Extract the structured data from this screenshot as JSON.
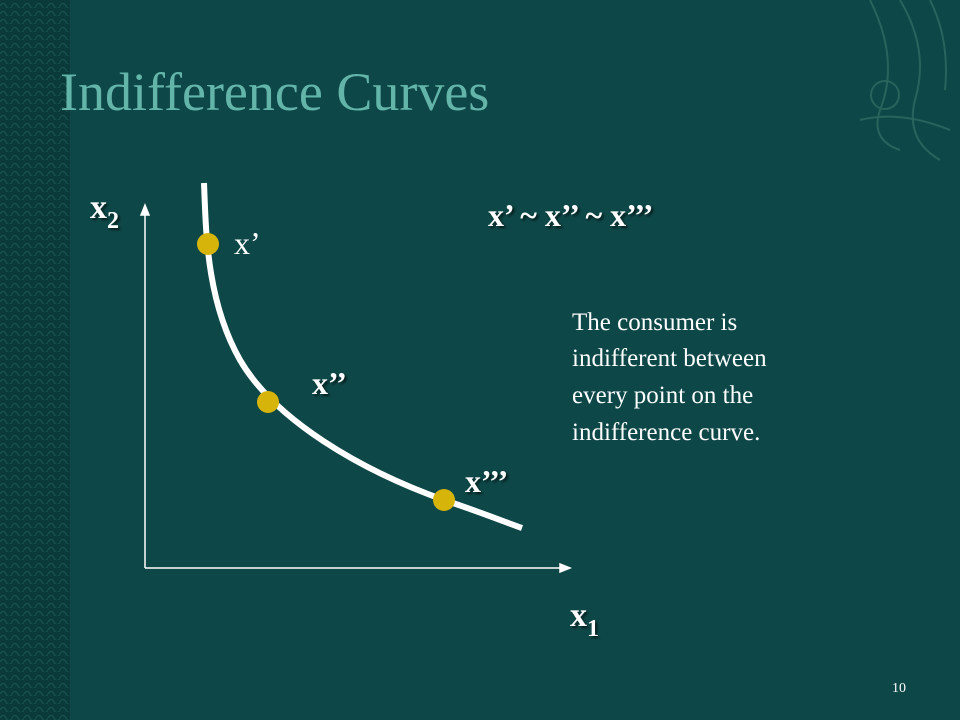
{
  "title": "Indifference Curves",
  "axes": {
    "y": {
      "base": "x",
      "sub": "2"
    },
    "x": {
      "base": "x",
      "sub": "1"
    }
  },
  "points": [
    {
      "label": "x’"
    },
    {
      "label": "x’’"
    },
    {
      "label": "x’’’"
    }
  ],
  "relation": "x’ ~ x’’ ~ x’’’",
  "description": [
    "The consumer is",
    "indifferent between",
    "every point on the",
    "indifference curve."
  ],
  "slide_number": "10"
}
